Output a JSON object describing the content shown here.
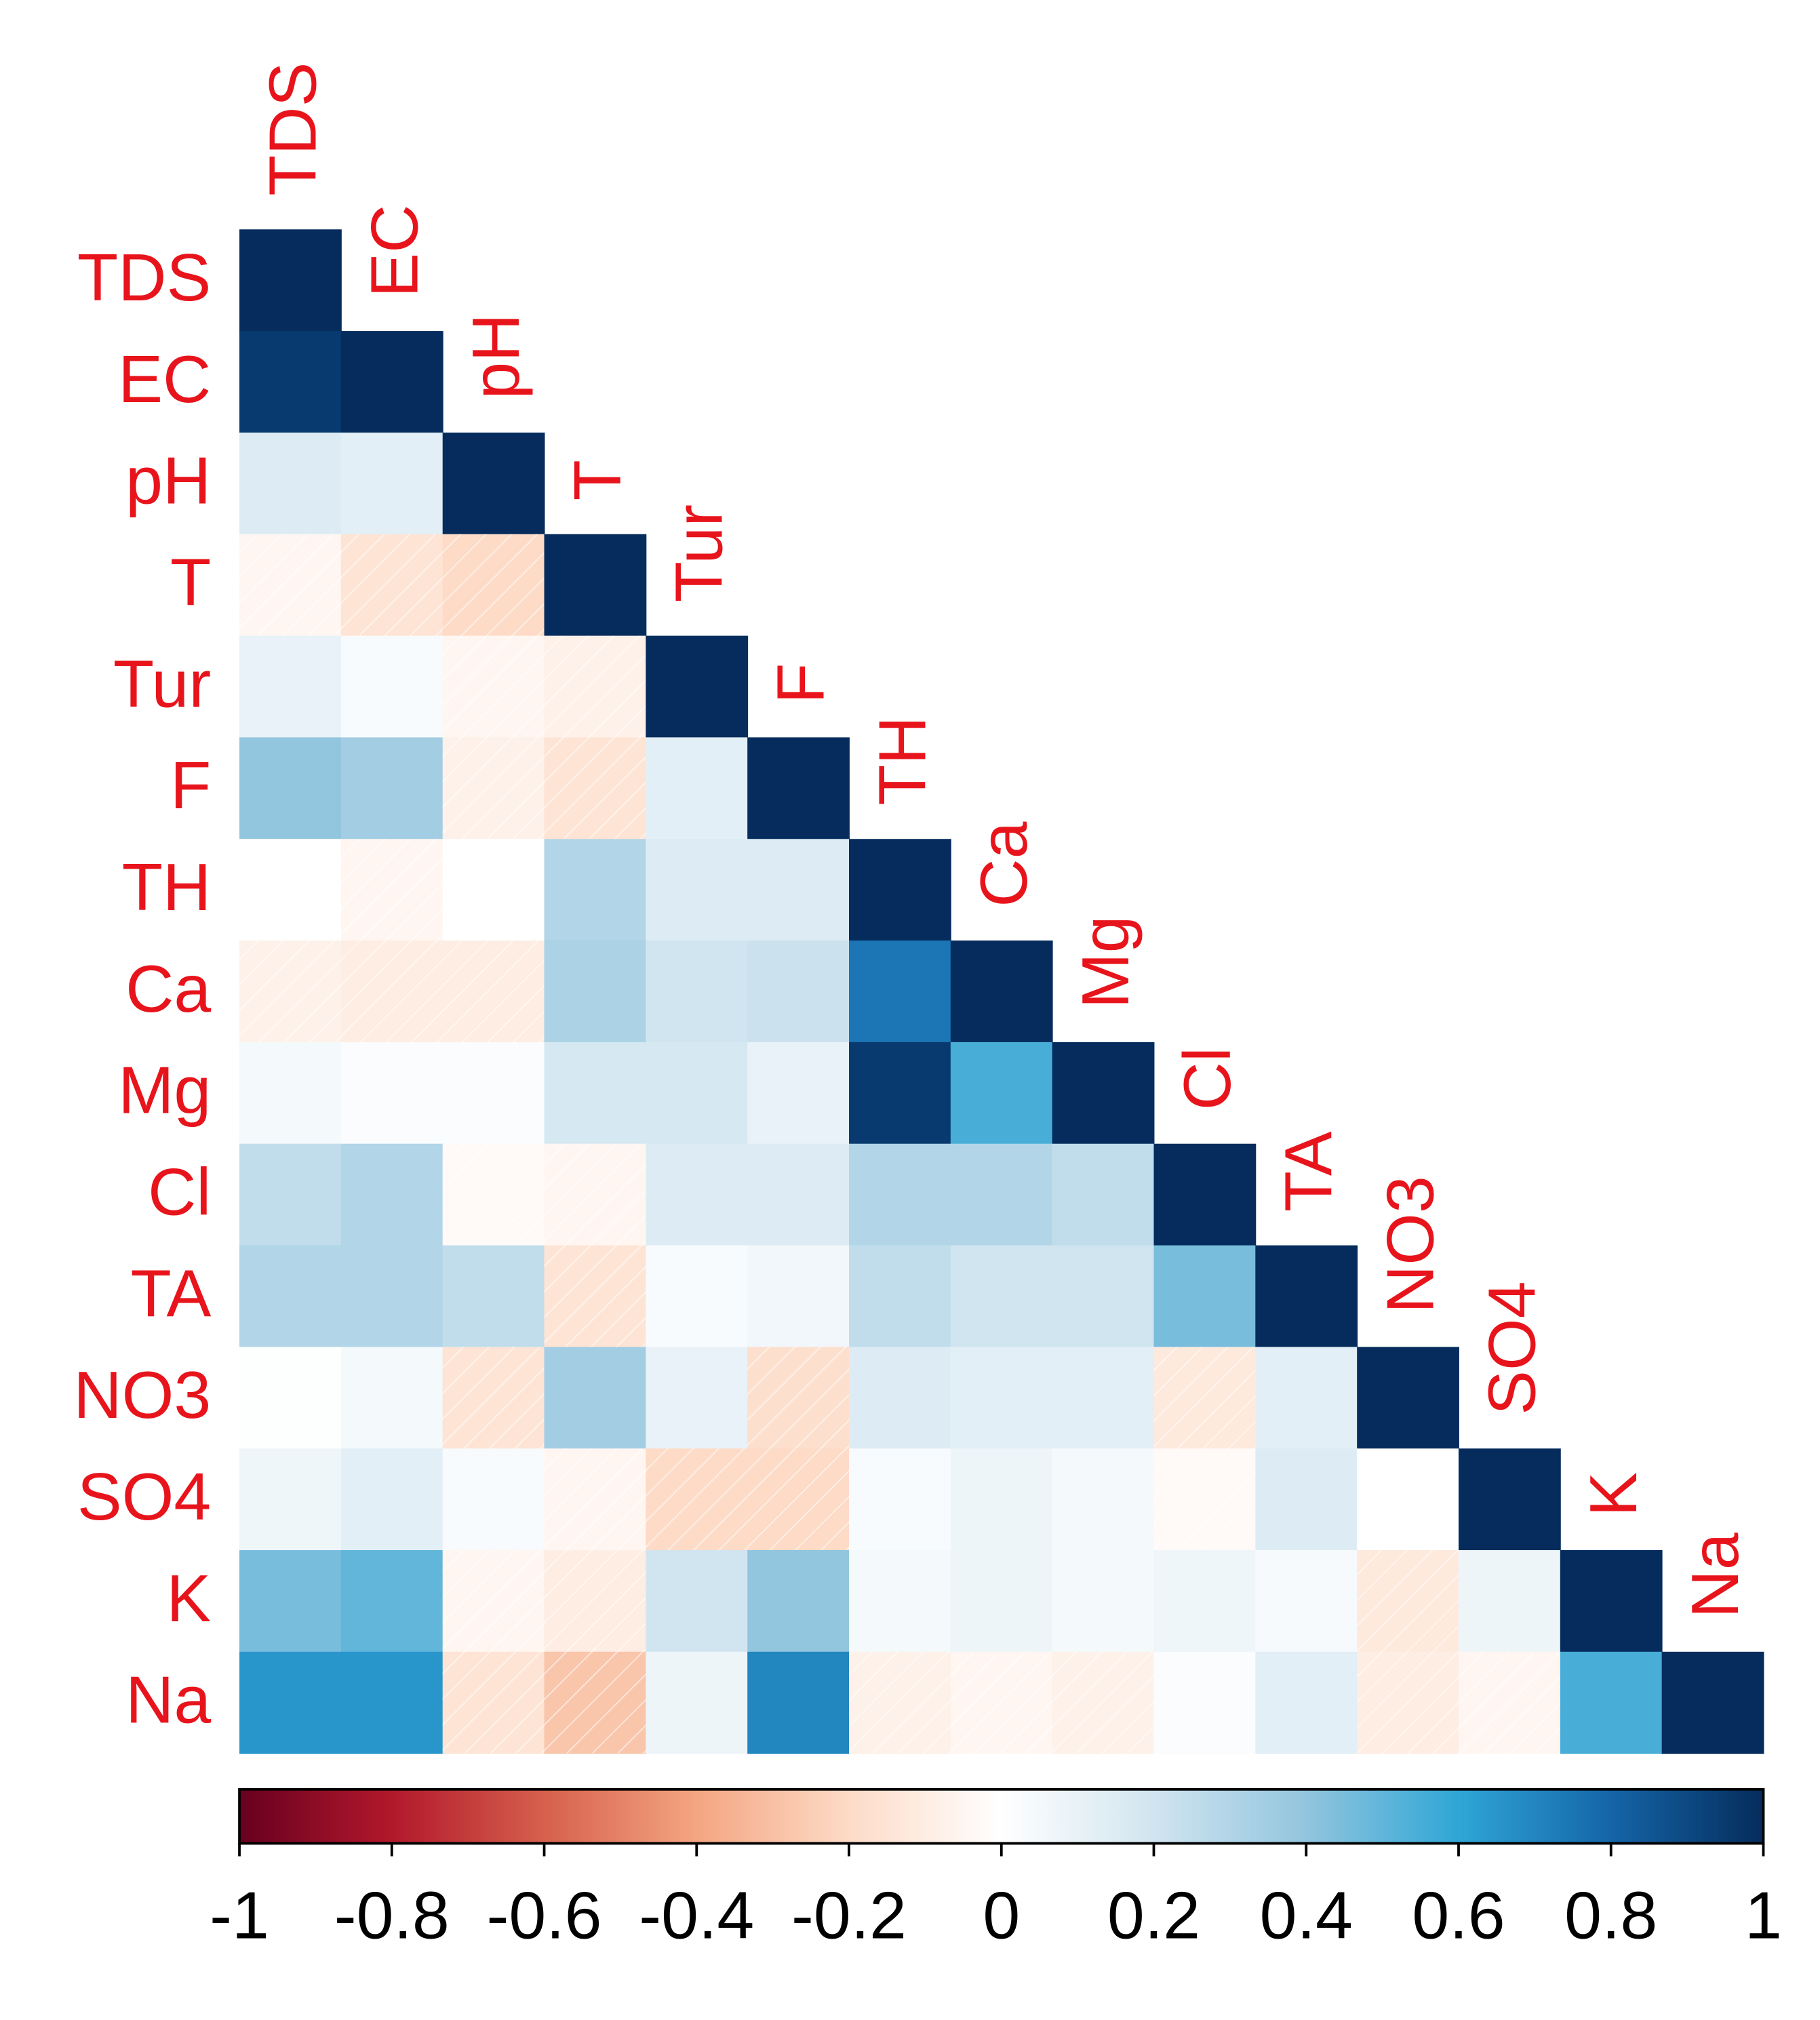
{
  "chart_data": {
    "type": "correlation-heatmap",
    "labels": [
      "TDS",
      "EC",
      "pH",
      "T",
      "Tur",
      "F",
      "TH",
      "Ca",
      "Mg",
      "Cl",
      "TA",
      "NO3",
      "SO4",
      "K",
      "Na"
    ],
    "values": [
      [
        1,
        null,
        null,
        null,
        null,
        null,
        null,
        null,
        null,
        null,
        null,
        null,
        null,
        null,
        null
      ],
      [
        0.95,
        1,
        null,
        null,
        null,
        null,
        null,
        null,
        null,
        null,
        null,
        null,
        null,
        null,
        null
      ],
      [
        0.15,
        0.12,
        1,
        null,
        null,
        null,
        null,
        null,
        null,
        null,
        null,
        null,
        null,
        null,
        null
      ],
      [
        -0.05,
        -0.15,
        -0.2,
        1,
        null,
        null,
        null,
        null,
        null,
        null,
        null,
        null,
        null,
        null,
        null
      ],
      [
        0.1,
        0.03,
        -0.05,
        -0.08,
        1,
        null,
        null,
        null,
        null,
        null,
        null,
        null,
        null,
        null,
        null
      ],
      [
        0.4,
        0.35,
        -0.08,
        -0.15,
        0.12,
        1,
        null,
        null,
        null,
        null,
        null,
        null,
        null,
        null,
        null
      ],
      [
        0.0,
        -0.05,
        0.0,
        0.3,
        0.15,
        0.15,
        1,
        null,
        null,
        null,
        null,
        null,
        null,
        null,
        null
      ],
      [
        -0.08,
        -0.1,
        -0.1,
        0.32,
        0.2,
        0.22,
        0.75,
        1,
        null,
        null,
        null,
        null,
        null,
        null,
        null
      ],
      [
        0.05,
        0.02,
        0.02,
        0.18,
        0.18,
        0.1,
        0.95,
        0.55,
        1,
        null,
        null,
        null,
        null,
        null,
        null
      ],
      [
        0.25,
        0.3,
        -0.03,
        -0.05,
        0.15,
        0.15,
        0.3,
        0.3,
        0.25,
        1,
        null,
        null,
        null,
        null,
        null
      ],
      [
        0.3,
        0.3,
        0.25,
        -0.15,
        0.03,
        0.06,
        0.25,
        0.2,
        0.2,
        0.45,
        1,
        null,
        null,
        null,
        null
      ],
      [
        0.01,
        0.05,
        -0.15,
        0.35,
        0.1,
        -0.18,
        0.15,
        0.12,
        0.12,
        -0.12,
        0.12,
        1,
        null,
        null,
        null
      ],
      [
        0.07,
        0.12,
        0.03,
        -0.05,
        -0.2,
        -0.2,
        0.03,
        0.08,
        0.05,
        -0.03,
        0.15,
        0.0,
        1,
        null,
        null
      ],
      [
        0.45,
        0.5,
        -0.05,
        -0.1,
        0.2,
        0.4,
        0.05,
        0.08,
        0.05,
        0.07,
        0.04,
        -0.12,
        0.08,
        1,
        null
      ],
      [
        0.65,
        0.65,
        -0.15,
        -0.28,
        0.08,
        0.7,
        -0.08,
        -0.05,
        -0.08,
        0.02,
        0.12,
        -0.1,
        -0.05,
        0.55,
        1
      ]
    ],
    "label_color": "#e8141c",
    "colors": [
      "#67001f",
      "#b2182b",
      "#d6604d",
      "#f4a582",
      "#fddbc7",
      "#ffffff",
      "#d1e5f0",
      "#92c5de",
      "#2fa6d6",
      "#1565a8",
      "#052c5c"
    ],
    "clim": [
      -1,
      1
    ],
    "cticks": [
      -1,
      -0.8,
      -0.6,
      -0.4,
      -0.2,
      0,
      0.2,
      0.4,
      0.6,
      0.8,
      1
    ]
  }
}
